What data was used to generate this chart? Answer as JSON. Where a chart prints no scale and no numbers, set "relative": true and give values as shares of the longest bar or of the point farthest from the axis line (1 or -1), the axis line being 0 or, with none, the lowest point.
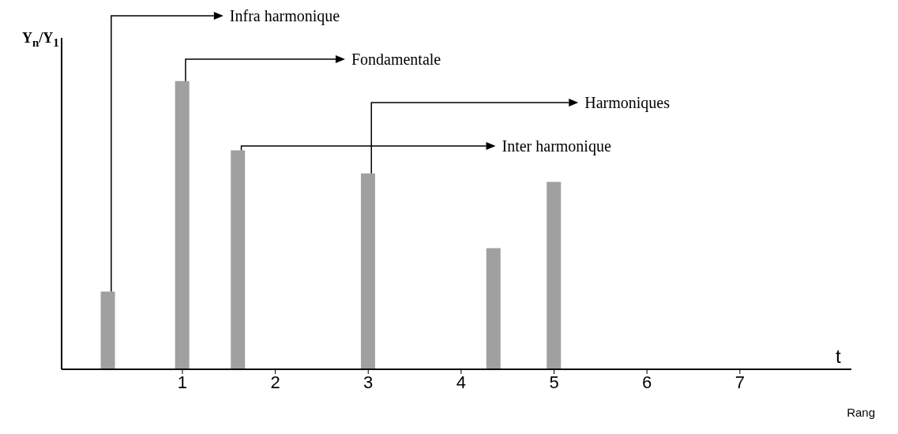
{
  "chart_data": {
    "type": "bar",
    "relative": true,
    "xlabel": "Rang",
    "ylabel": "Y$_{n}$/Y$_{1}$",
    "x": [
      0.2,
      1,
      1.6,
      3,
      4.35,
      5
    ],
    "values": [
      0.27,
      1,
      0.76,
      0.68,
      0.42,
      0.65
    ],
    "color": "#a0a0a0",
    "xlim": [
      -0.3,
      8.2
    ],
    "xticks": [
      1,
      2,
      3,
      4,
      5,
      6,
      7
    ],
    "annotations": [
      {
        "text": "Infra harmonique",
        "x": 0.2,
        "y": 0.27
      },
      {
        "text": "Fondamentale",
        "x": 1,
        "y": 1
      },
      {
        "text": "Harmoniques",
        "x": 3,
        "y": 0.68
      },
      {
        "text": "Inter harmonique",
        "x": 1.6,
        "y": 0.76
      },
      "t"
    ]
  }
}
